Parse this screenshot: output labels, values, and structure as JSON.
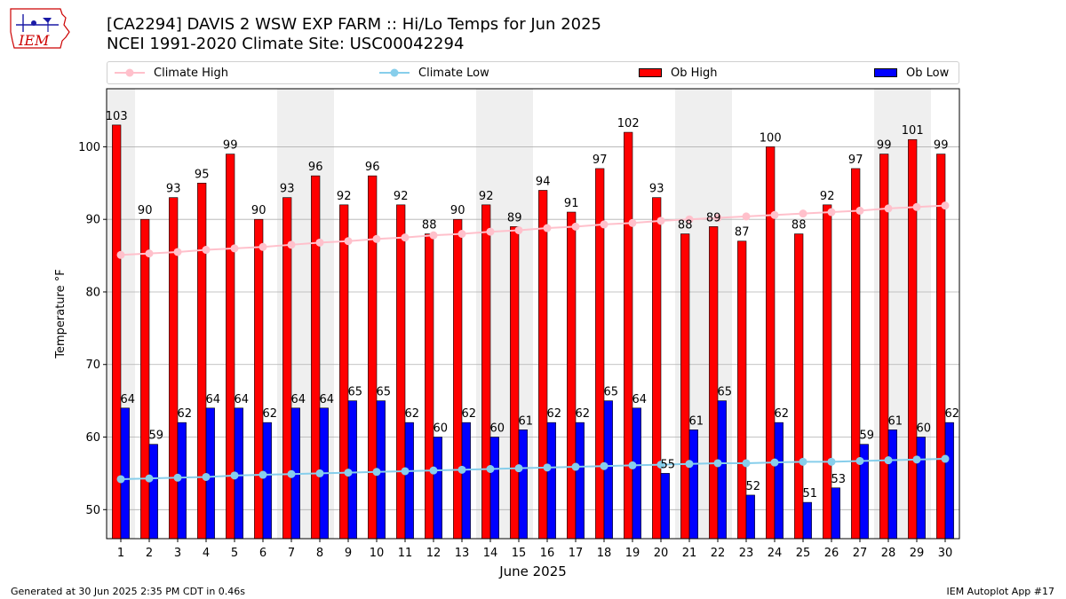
{
  "header": {
    "title_line1": "[CA2294] DAVIS 2 WSW EXP FARM :: Hi/Lo Temps for Jun 2025",
    "title_line2": "NCEI 1991-2020 Climate Site: USC00042294"
  },
  "logo": {
    "text": "IEM"
  },
  "legend": {
    "climate_high": "Climate High",
    "climate_low": "Climate Low",
    "ob_high": "Ob High",
    "ob_low": "Ob Low"
  },
  "footer": {
    "left": "Generated at 30 Jun 2025 2:35 PM CDT in 0.46s",
    "right": "IEM Autoplot App #17"
  },
  "colors": {
    "ob_high": "#ff0000",
    "ob_low": "#0000ff",
    "climate_high": "#ffc0cb",
    "climate_low": "#87ceeb",
    "weekend_band": "#efefef",
    "grid": "#b0b0b0"
  },
  "chart_data": {
    "type": "bar",
    "xlabel": "June 2025",
    "ylabel": "Temperature °F",
    "ylim": [
      46,
      108
    ],
    "yticks": [
      50,
      60,
      70,
      80,
      90,
      100
    ],
    "grid": "horizontal",
    "legend_position": "top",
    "categories": [
      "1",
      "2",
      "3",
      "4",
      "5",
      "6",
      "7",
      "8",
      "9",
      "10",
      "11",
      "12",
      "13",
      "14",
      "15",
      "16",
      "17",
      "18",
      "19",
      "20",
      "21",
      "22",
      "23",
      "24",
      "25",
      "26",
      "27",
      "28",
      "29",
      "30"
    ],
    "weekend_days": [
      1,
      7,
      8,
      14,
      15,
      21,
      22,
      28,
      29
    ],
    "series": [
      {
        "name": "Ob High",
        "kind": "bar",
        "values": [
          103,
          90,
          93,
          95,
          99,
          90,
          93,
          96,
          92,
          96,
          92,
          88,
          90,
          92,
          89,
          94,
          91,
          97,
          102,
          93,
          88,
          89,
          87,
          100,
          88,
          92,
          97,
          99,
          101,
          99
        ]
      },
      {
        "name": "Ob Low",
        "kind": "bar",
        "values": [
          64,
          59,
          62,
          64,
          64,
          62,
          64,
          64,
          65,
          65,
          62,
          60,
          62,
          60,
          61,
          62,
          62,
          65,
          64,
          55,
          61,
          65,
          52,
          62,
          51,
          53,
          59,
          61,
          60,
          62
        ]
      },
      {
        "name": "Climate High",
        "kind": "line",
        "values": [
          85.1,
          85.3,
          85.5,
          85.8,
          86.0,
          86.2,
          86.5,
          86.8,
          87.0,
          87.3,
          87.5,
          87.8,
          88.0,
          88.3,
          88.5,
          88.8,
          89.0,
          89.3,
          89.5,
          89.8,
          90.0,
          90.2,
          90.4,
          90.6,
          90.8,
          91.0,
          91.2,
          91.5,
          91.7,
          91.9
        ]
      },
      {
        "name": "Climate Low",
        "kind": "line",
        "values": [
          54.2,
          54.3,
          54.4,
          54.5,
          54.7,
          54.8,
          54.9,
          55.0,
          55.1,
          55.2,
          55.3,
          55.4,
          55.5,
          55.6,
          55.7,
          55.8,
          55.9,
          56.0,
          56.1,
          56.2,
          56.3,
          56.4,
          56.4,
          56.5,
          56.6,
          56.6,
          56.7,
          56.8,
          56.9,
          57.0
        ]
      }
    ]
  }
}
